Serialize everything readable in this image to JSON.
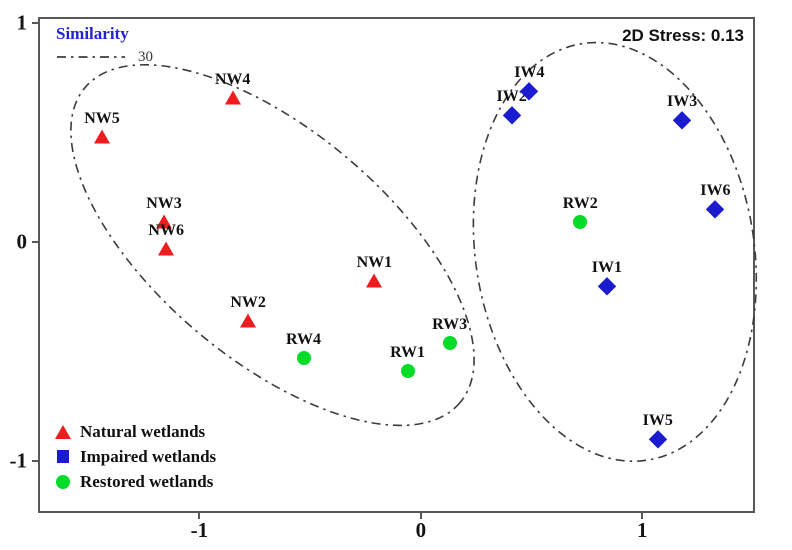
{
  "chart_data": {
    "type": "scatter",
    "xlabel": "",
    "ylabel": "",
    "xlim": [
      -1.72,
      1.5
    ],
    "ylim": [
      -1.23,
      1.02
    ],
    "x_ticks": [
      "-1",
      "0",
      "1"
    ],
    "x_tick_values": [
      -1,
      0,
      1
    ],
    "y_ticks": [
      "1",
      "0",
      "-1"
    ],
    "y_tick_values": [
      1,
      0,
      -1
    ],
    "grid": false,
    "legend_position": "bottom-left",
    "annotations": {
      "stress_label": "2D Stress: 0.13",
      "similarity_legend_title": "Similarity",
      "similarity_level": "30"
    },
    "series": [
      {
        "name": "Natural wetlands",
        "marker": "triangle",
        "color": "#ee1c1c",
        "points": [
          {
            "label": "NW5",
            "x": -1.44,
            "y": 0.48
          },
          {
            "label": "NW4",
            "x": -0.85,
            "y": 0.66
          },
          {
            "label": "NW3",
            "x": -1.16,
            "y": 0.09
          },
          {
            "label": "NW6",
            "x": -1.15,
            "y": -0.03
          },
          {
            "label": "NW2",
            "x": -0.78,
            "y": -0.36
          },
          {
            "label": "NW1",
            "x": -0.21,
            "y": -0.18
          }
        ]
      },
      {
        "name": "Impaired wetlands",
        "marker": "diamond",
        "color": "#1b1bd0",
        "points": [
          {
            "label": "IW2",
            "x": 0.41,
            "y": 0.58
          },
          {
            "label": "IW4",
            "x": 0.49,
            "y": 0.69
          },
          {
            "label": "IW3",
            "x": 1.18,
            "y": 0.56
          },
          {
            "label": "IW6",
            "x": 1.33,
            "y": 0.15
          },
          {
            "label": "IW1",
            "x": 0.84,
            "y": -0.2
          },
          {
            "label": "IW5",
            "x": 1.07,
            "y": -0.9
          }
        ]
      },
      {
        "name": "Restored wetlands",
        "marker": "circle",
        "color": "#00dc28",
        "points": [
          {
            "label": "RW4",
            "x": -0.53,
            "y": -0.53
          },
          {
            "label": "RW1",
            "x": -0.06,
            "y": -0.59
          },
          {
            "label": "RW3",
            "x": 0.13,
            "y": -0.46
          },
          {
            "label": "RW2",
            "x": 0.72,
            "y": 0.09
          }
        ]
      },
      {
        "name": "_ellipses",
        "marker": "none",
        "color": "#3c3c3c",
        "points": []
      }
    ],
    "cluster_ellipses": [
      {
        "cx": -0.67,
        "cy": -0.014,
        "rx": 1.106,
        "ry": 0.525,
        "rotate": 40
      },
      {
        "cx": 0.876,
        "cy": -0.045,
        "rx": 0.629,
        "ry": 0.964,
        "rotate": -9
      }
    ]
  }
}
